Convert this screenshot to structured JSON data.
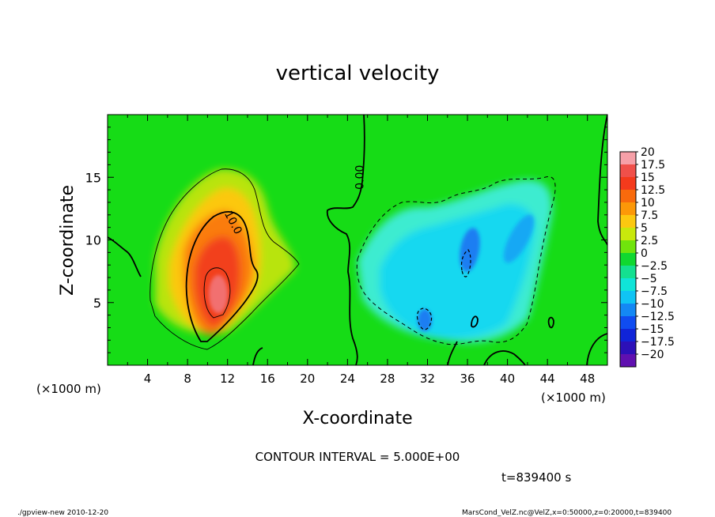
{
  "chart_data": {
    "type": "heatmap",
    "title": "vertical velocity",
    "xlabel": "X-coordinate",
    "ylabel": "Z-coordinate",
    "x_unit_left": "(×1000 m)",
    "x_unit_right": "(×1000 m)",
    "xlim": [
      0,
      50
    ],
    "ylim": [
      0,
      20
    ],
    "x_ticks": [
      4,
      8,
      12,
      16,
      20,
      24,
      28,
      32,
      36,
      40,
      44,
      48
    ],
    "y_ticks": [
      5,
      10,
      15
    ],
    "contour_interval_text": "CONTOUR INTERVAL = 5.000E+00",
    "time_text": "t=839400 s",
    "footer_left": "./gpview-new  2010-12-20",
    "footer_right": "MarsCond_VelZ.nc@VelZ,x=0:50000,z=0:20000,t=839400",
    "contour_labels": [
      {
        "text": "10.0",
        "x": 12.6,
        "z": 11.4,
        "angle": 62
      },
      {
        "text": "0.00",
        "x": 25.2,
        "z": 15.0,
        "angle": -90
      }
    ],
    "colorbar": {
      "levels": [
        "20",
        "17.5",
        "15",
        "12.5",
        "10",
        "7.5",
        "5",
        "2.5",
        "0",
        "−2.5",
        "−5",
        "−7.5",
        "−10",
        "−12.5",
        "−15",
        "−17.5",
        "−20"
      ],
      "colors": [
        "#f6a0a8",
        "#f0504a",
        "#f43a1c",
        "#f86a0c",
        "#fc9808",
        "#fcc810",
        "#c8e80c",
        "#70e40c",
        "#10d830",
        "#14e090",
        "#10e4d8",
        "#10c4f4",
        "#1488f4",
        "#104cf0",
        "#1024d8",
        "#2c10b8",
        "#6010b0"
      ]
    },
    "features": {
      "background_w": 1.5,
      "updraft": {
        "x_center": 10.8,
        "z_center": 6.2,
        "peak_w": 19,
        "contours": [
          5,
          10,
          15
        ]
      },
      "downdraft_cores": [
        {
          "x": 35.8,
          "z": 8.8,
          "min_w": -12
        },
        {
          "x": 41.8,
          "z": 10.0,
          "min_w": -10
        },
        {
          "x": 31.5,
          "z": 3.9,
          "min_w": -9
        }
      ],
      "zero_line_x_top": 26.0,
      "dashed_contour": -5
    }
  }
}
